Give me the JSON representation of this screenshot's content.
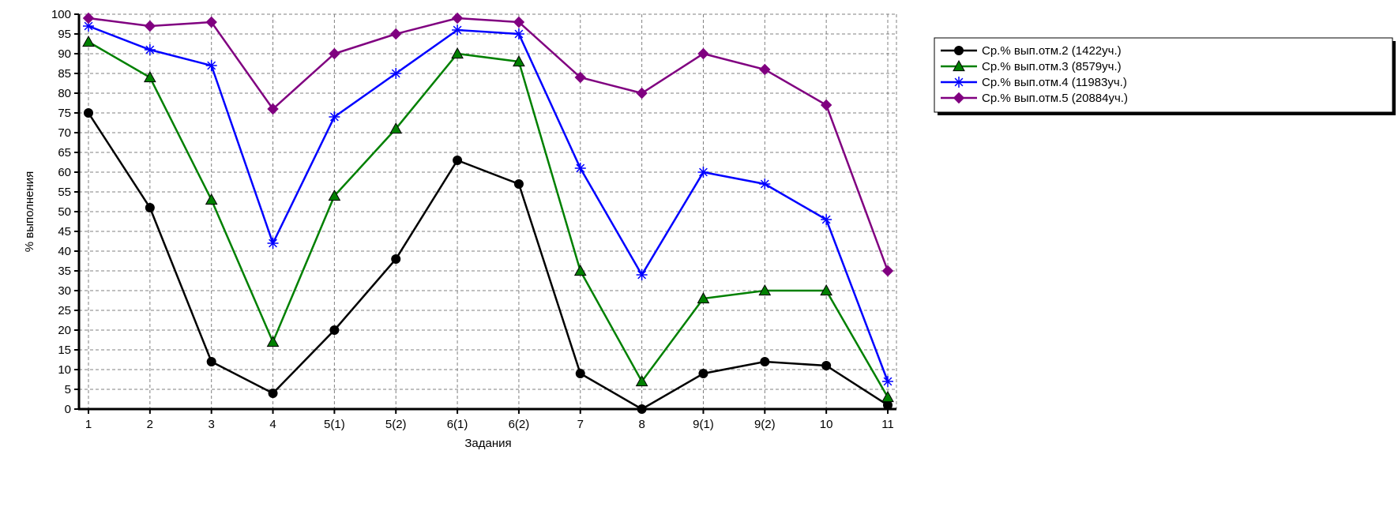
{
  "chart_data": {
    "type": "line",
    "title": "",
    "xlabel": "Задания",
    "ylabel": "% выполнения",
    "categories": [
      "1",
      "2",
      "3",
      "4",
      "5(1)",
      "5(2)",
      "6(1)",
      "6(2)",
      "7",
      "8",
      "9(1)",
      "9(2)",
      "10",
      "11"
    ],
    "ylim": [
      0,
      100
    ],
    "yticks": [
      0,
      5,
      10,
      15,
      20,
      25,
      30,
      35,
      40,
      45,
      50,
      55,
      60,
      65,
      70,
      75,
      80,
      85,
      90,
      95,
      100
    ],
    "grid": true,
    "legend_position": "top-right",
    "series": [
      {
        "name": "Ср.% вып.отм.2 (1422уч.)",
        "color": "#000000",
        "marker": "circle",
        "values": [
          75,
          51,
          12,
          4,
          20,
          38,
          63,
          57,
          9,
          0,
          9,
          12,
          11,
          1
        ]
      },
      {
        "name": "Ср.% вып.отм.3 (8579уч.)",
        "color": "#008000",
        "marker": "triangle",
        "values": [
          93,
          84,
          53,
          17,
          54,
          71,
          90,
          88,
          35,
          7,
          28,
          30,
          30,
          3
        ]
      },
      {
        "name": "Ср.% вып.отм.4 (11983уч.)",
        "color": "#0000ff",
        "marker": "asterisk",
        "values": [
          97,
          91,
          87,
          42,
          74,
          85,
          96,
          95,
          61,
          34,
          60,
          57,
          48,
          7
        ]
      },
      {
        "name": "Ср.% вып.отм.5 (20884уч.)",
        "color": "#800080",
        "marker": "diamond",
        "values": [
          99,
          97,
          98,
          76,
          90,
          95,
          99,
          98,
          84,
          80,
          90,
          86,
          77,
          35
        ]
      }
    ]
  }
}
